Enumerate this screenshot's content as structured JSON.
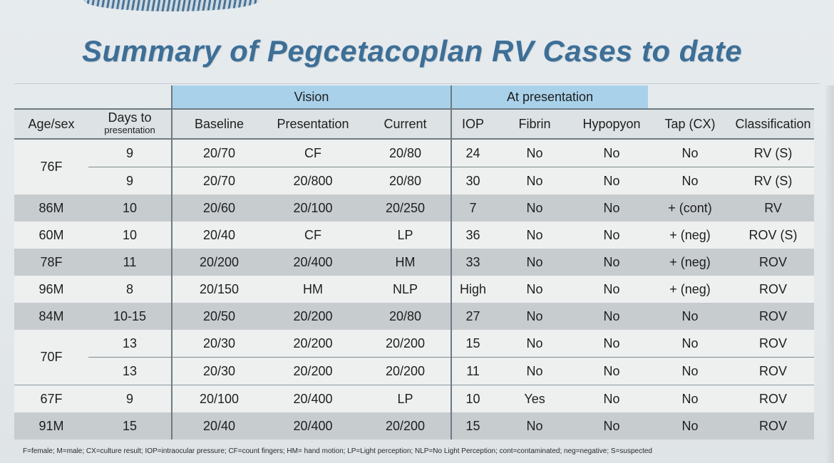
{
  "title": "Summary of Pegcetacoplan RV Cases to date",
  "group_headers": {
    "vision": "Vision",
    "at_presentation": "At presentation"
  },
  "columns": {
    "age_sex": "Age/sex",
    "days_line1": "Days to",
    "days_line2": "presentation",
    "baseline": "Baseline",
    "presentation": "Presentation",
    "current": "Current",
    "iop": "IOP",
    "fibrin": "Fibrin",
    "hypopyon": "Hypopyon",
    "tap": "Tap (CX)",
    "classification": "Classification"
  },
  "rows": [
    {
      "age_sex": "76F",
      "days": "9",
      "baseline": "20/70",
      "presentation": "CF",
      "current": "20/80",
      "iop": "24",
      "fibrin": "No",
      "hypopyon": "No",
      "tap": "No",
      "classification": "RV (S)"
    },
    {
      "age_sex": "",
      "days": "9",
      "baseline": "20/70",
      "presentation": "20/800",
      "current": "20/80",
      "iop": "30",
      "fibrin": "No",
      "hypopyon": "No",
      "tap": "No",
      "classification": "RV (S)"
    },
    {
      "age_sex": "86M",
      "days": "10",
      "baseline": "20/60",
      "presentation": "20/100",
      "current": "20/250",
      "iop": "7",
      "fibrin": "No",
      "hypopyon": "No",
      "tap": "+ (cont)",
      "classification": "RV"
    },
    {
      "age_sex": "60M",
      "days": "10",
      "baseline": "20/40",
      "presentation": "CF",
      "current": "LP",
      "iop": "36",
      "fibrin": "No",
      "hypopyon": "No",
      "tap": "+ (neg)",
      "classification": "ROV (S)"
    },
    {
      "age_sex": "78F",
      "days": "11",
      "baseline": "20/200",
      "presentation": "20/400",
      "current": "HM",
      "iop": "33",
      "fibrin": "No",
      "hypopyon": "No",
      "tap": "+ (neg)",
      "classification": "ROV"
    },
    {
      "age_sex": "96M",
      "days": "8",
      "baseline": "20/150",
      "presentation": "HM",
      "current": "NLP",
      "iop": "High",
      "fibrin": "No",
      "hypopyon": "No",
      "tap": "+ (neg)",
      "classification": "ROV"
    },
    {
      "age_sex": "84M",
      "days": "10-15",
      "baseline": "20/50",
      "presentation": "20/200",
      "current": "20/80",
      "iop": "27",
      "fibrin": "No",
      "hypopyon": "No",
      "tap": "No",
      "classification": "ROV"
    },
    {
      "age_sex": "70F",
      "days": "13",
      "baseline": "20/30",
      "presentation": "20/200",
      "current": "20/200",
      "iop": "15",
      "fibrin": "No",
      "hypopyon": "No",
      "tap": "No",
      "classification": "ROV"
    },
    {
      "age_sex": "",
      "days": "13",
      "baseline": "20/30",
      "presentation": "20/200",
      "current": "20/200",
      "iop": "11",
      "fibrin": "No",
      "hypopyon": "No",
      "tap": "No",
      "classification": "ROV"
    },
    {
      "age_sex": "67F",
      "days": "9",
      "baseline": "20/100",
      "presentation": "20/400",
      "current": "LP",
      "iop": "10",
      "fibrin": "Yes",
      "hypopyon": "No",
      "tap": "No",
      "classification": "ROV"
    },
    {
      "age_sex": "91M",
      "days": "15",
      "baseline": "20/40",
      "presentation": "20/400",
      "current": "20/200",
      "iop": "15",
      "fibrin": "No",
      "hypopyon": "No",
      "tap": "No",
      "classification": "ROV"
    }
  ],
  "footnote": "F=female; M=male; CX=culture result; IOP=intraocular pressure; CF=count fingers; HM= hand motion; LP=Light perception; NLP=No Light Perception; cont=contaminated; neg=negative; S=suspected",
  "colors": {
    "title": "#3d6f97",
    "group_header_bg": "#a9d2ea",
    "shade_row": "#c7cccf",
    "light_row": "#eef0f0"
  }
}
